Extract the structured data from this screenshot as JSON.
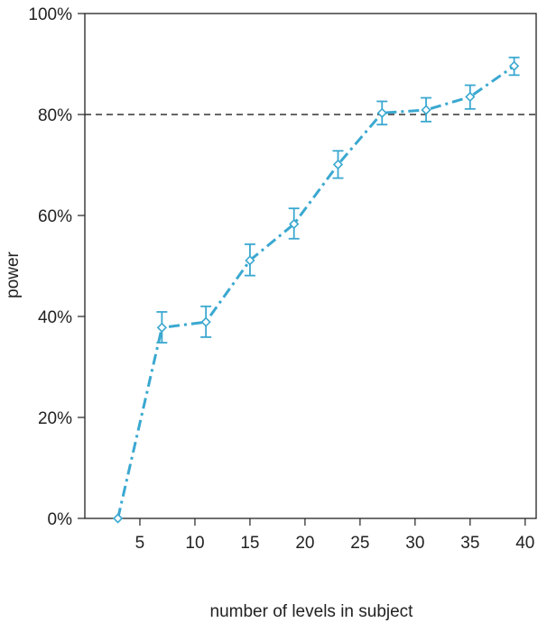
{
  "chart_data": {
    "type": "line",
    "xlabel": "number of levels in subject",
    "ylabel": "power",
    "x_ticks": [
      5,
      10,
      15,
      20,
      25,
      30,
      35,
      40
    ],
    "y_ticks": [
      0,
      20,
      40,
      60,
      80,
      100
    ],
    "y_tick_labels": [
      "0%",
      "20%",
      "40%",
      "60%",
      "80%",
      "100%"
    ],
    "xlim": [
      0,
      41
    ],
    "ylim": [
      0,
      100
    ],
    "reference_line": {
      "y": 80,
      "style": "dashed"
    },
    "series": [
      {
        "x": [
          3,
          7,
          11,
          15,
          19,
          23,
          27,
          31,
          35,
          39
        ],
        "y": [
          0,
          37.8,
          38.9,
          51.1,
          58.3,
          70.1,
          80.3,
          80.9,
          83.5,
          89.6
        ],
        "err_low": [
          0,
          34.8,
          35.9,
          48.1,
          55.4,
          67.4,
          78.0,
          78.6,
          81.1,
          87.8
        ],
        "err_high": [
          0,
          40.9,
          42.0,
          54.3,
          61.4,
          72.8,
          82.6,
          83.3,
          85.8,
          91.3
        ]
      }
    ],
    "colors": {
      "series": "#3aa8d0",
      "reference": "#333333",
      "axis": "#222222"
    }
  }
}
